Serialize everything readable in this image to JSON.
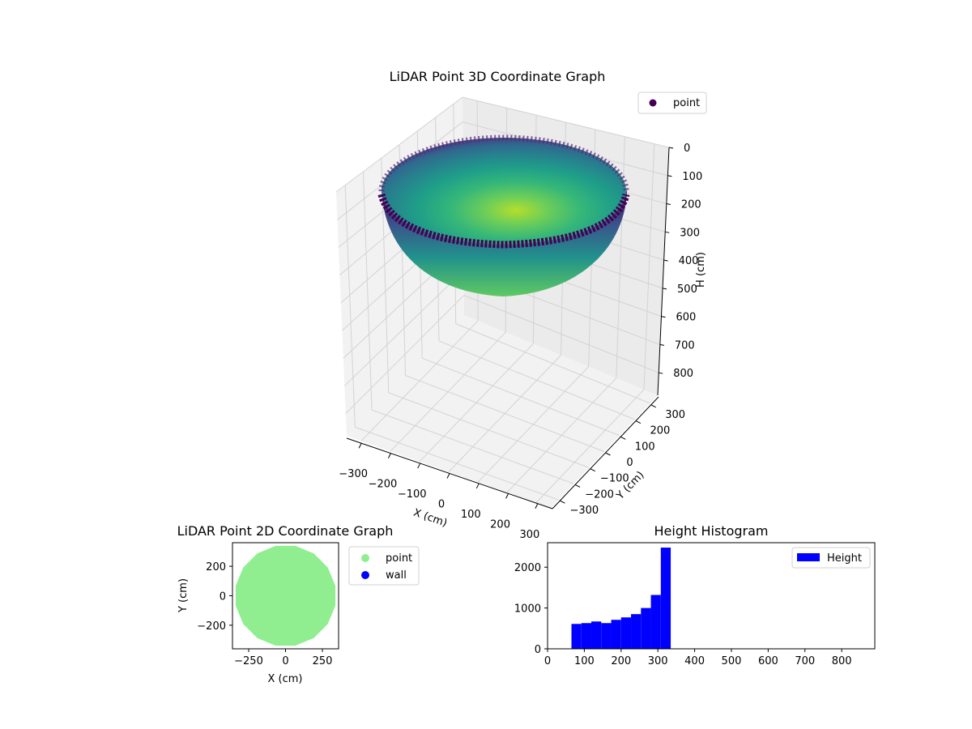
{
  "chart_data": [
    {
      "type": "scatter3d",
      "title": "LiDAR Point 3D Coordinate Graph",
      "xlabel": "X (cm)",
      "ylabel": "Y (cm)",
      "zlabel": "H (cm)",
      "x_ticks": [
        "−300",
        "−200",
        "−100",
        "0",
        "100",
        "200",
        "300"
      ],
      "y_ticks": [
        "−300",
        "−200",
        "−100",
        "0",
        "100",
        "200",
        "300"
      ],
      "z_ticks": [
        "0",
        "100",
        "200",
        "300",
        "400",
        "500",
        "600",
        "700",
        "800"
      ],
      "xlim": [
        -350,
        350
      ],
      "ylim": [
        -350,
        350
      ],
      "zlim": [
        0,
        880
      ],
      "z_inverted": true,
      "legend": [
        "point"
      ],
      "legend_position": "top-right",
      "colormap": "viridis",
      "shape": "hemispherical bowl",
      "radius_cm": 340,
      "height_range_cm": [
        60,
        390
      ]
    },
    {
      "type": "scatter",
      "title": "LiDAR Point 2D Coordinate Graph",
      "xlabel": "X (cm)",
      "ylabel": "Y (cm)",
      "x_ticks": [
        "−250",
        "0",
        "250"
      ],
      "y_ticks": [
        "200",
        "0",
        "−200"
      ],
      "xlim": [
        -360,
        360
      ],
      "ylim": [
        -360,
        360
      ],
      "series": [
        {
          "name": "point",
          "color": "#90ee90",
          "shape": "filled disc",
          "radius_cm": 345
        },
        {
          "name": "wall",
          "color": "#0000ff",
          "points": 0
        }
      ],
      "legend_position": "outside-right"
    },
    {
      "type": "bar",
      "title": "Height Histogram",
      "xlabel": "",
      "ylabel": "",
      "legend": [
        "Height"
      ],
      "legend_position": "top-right",
      "color": "#0000ff",
      "bin_edges": [
        65,
        92,
        119,
        146,
        173,
        200,
        227,
        254,
        281,
        308,
        335,
        362,
        389
      ],
      "values": [
        610,
        630,
        670,
        630,
        710,
        770,
        850,
        1000,
        1320,
        2480,
        0,
        0
      ],
      "x_ticks": [
        "0",
        "100",
        "200",
        "300",
        "400",
        "500",
        "600",
        "700",
        "800"
      ],
      "y_ticks": [
        "0",
        "1000",
        "2000"
      ],
      "xlim": [
        0,
        890
      ],
      "ylim": [
        0,
        2600
      ]
    }
  ]
}
